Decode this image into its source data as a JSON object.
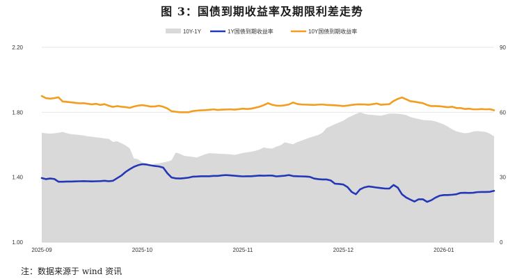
{
  "title": "图 3：国债到期收益率及期限利差走势",
  "note": "注：数据来源于 wind 资讯",
  "chart_data": {
    "type": "line+area",
    "x_tick_labels": [
      "2025-09",
      "2025-10",
      "2025-11",
      "2025-12",
      "2026-01"
    ],
    "x_ticks_index": [
      0,
      24,
      48,
      72,
      96
    ],
    "n_points": 109,
    "left_axis": {
      "ylim": [
        1.0,
        2.2
      ],
      "ticks": [
        "1.00",
        "1.40",
        "1.80",
        "2.20"
      ]
    },
    "right_axis": {
      "ylim": [
        0,
        90
      ],
      "ticks": [
        "0",
        "30",
        "60",
        "90"
      ]
    },
    "grid": true,
    "legend_position": "top-center",
    "series": [
      {
        "name": "10Y-1Y",
        "type": "area",
        "axis": "right",
        "color": "#d9d9d9",
        "values": [
          50.5,
          50.3,
          50.1,
          50.3,
          50.5,
          50.9,
          50.3,
          49.9,
          49.7,
          49.5,
          49.2,
          48.9,
          48.7,
          48.4,
          48.2,
          47.9,
          47.7,
          46.3,
          46.6,
          45.7,
          44.7,
          43.3,
          38.7,
          38.3,
          36.8,
          36.4,
          35.4,
          36.2,
          36.4,
          36.8,
          37.2,
          37.8,
          41.4,
          40.8,
          39.9,
          39.6,
          39.4,
          39.1,
          39.8,
          40.6,
          41.1,
          41.0,
          40.9,
          40.8,
          40.7,
          40.6,
          40.3,
          40.7,
          41.2,
          41.5,
          41.8,
          42.2,
          42.8,
          43.7,
          43.4,
          43.2,
          44.1,
          44.7,
          46.1,
          45.7,
          45.2,
          46.2,
          46.9,
          47.6,
          48.3,
          48.9,
          49.5,
          50.5,
          52.7,
          53.6,
          54.5,
          55.3,
          56.1,
          57.4,
          58.3,
          59.2,
          60.0,
          59.3,
          58.9,
          58.8,
          58.6,
          58.4,
          58.9,
          59.4,
          59.4,
          59.3,
          59.1,
          58.7,
          57.8,
          57.3,
          56.9,
          56.4,
          56.3,
          56.2,
          55.8,
          55.1,
          54.4,
          53.3,
          52.1,
          51.2,
          50.7,
          50.3,
          50.5,
          51.1,
          51.3,
          51.1,
          50.9,
          50.1,
          48.9
        ]
      },
      {
        "name": "1Y国债到期收益率",
        "type": "line",
        "axis": "left",
        "color": "#2437b5",
        "values": [
          1.395,
          1.388,
          1.392,
          1.389,
          1.372,
          1.372,
          1.373,
          1.373,
          1.374,
          1.375,
          1.376,
          1.375,
          1.374,
          1.375,
          1.376,
          1.378,
          1.375,
          1.378,
          1.394,
          1.41,
          1.432,
          1.449,
          1.464,
          1.474,
          1.48,
          1.478,
          1.473,
          1.469,
          1.466,
          1.459,
          1.424,
          1.398,
          1.393,
          1.392,
          1.394,
          1.397,
          1.403,
          1.404,
          1.406,
          1.406,
          1.406,
          1.408,
          1.408,
          1.411,
          1.413,
          1.411,
          1.409,
          1.407,
          1.405,
          1.406,
          1.406,
          1.408,
          1.41,
          1.409,
          1.41,
          1.41,
          1.405,
          1.407,
          1.409,
          1.413,
          1.407,
          1.406,
          1.405,
          1.404,
          1.402,
          1.392,
          1.388,
          1.386,
          1.386,
          1.38,
          1.36,
          1.358,
          1.355,
          1.339,
          1.309,
          1.295,
          1.325,
          1.337,
          1.343,
          1.34,
          1.336,
          1.333,
          1.33,
          1.33,
          1.352,
          1.336,
          1.295,
          1.275,
          1.262,
          1.25,
          1.264,
          1.264,
          1.248,
          1.258,
          1.274,
          1.286,
          1.29,
          1.29,
          1.292,
          1.295,
          1.303,
          1.304,
          1.303,
          1.304,
          1.308,
          1.309,
          1.309,
          1.31,
          1.316
        ]
      },
      {
        "name": "10Y国债到期收益率",
        "type": "line",
        "axis": "left",
        "color": "#f39c1e",
        "values": [
          1.9,
          1.887,
          1.884,
          1.887,
          1.892,
          1.866,
          1.864,
          1.861,
          1.858,
          1.855,
          1.856,
          1.852,
          1.849,
          1.852,
          1.845,
          1.85,
          1.84,
          1.833,
          1.838,
          1.834,
          1.832,
          1.827,
          1.835,
          1.841,
          1.844,
          1.84,
          1.835,
          1.836,
          1.84,
          1.834,
          1.823,
          1.806,
          1.803,
          1.8,
          1.8,
          1.8,
          1.807,
          1.81,
          1.812,
          1.813,
          1.815,
          1.818,
          1.814,
          1.816,
          1.817,
          1.818,
          1.816,
          1.819,
          1.822,
          1.82,
          1.822,
          1.828,
          1.834,
          1.844,
          1.856,
          1.846,
          1.841,
          1.84,
          1.843,
          1.848,
          1.86,
          1.851,
          1.848,
          1.847,
          1.846,
          1.845,
          1.847,
          1.848,
          1.845,
          1.844,
          1.843,
          1.841,
          1.838,
          1.841,
          1.845,
          1.848,
          1.849,
          1.848,
          1.846,
          1.85,
          1.854,
          1.846,
          1.848,
          1.85,
          1.869,
          1.882,
          1.891,
          1.88,
          1.868,
          1.865,
          1.86,
          1.856,
          1.845,
          1.838,
          1.838,
          1.837,
          1.834,
          1.831,
          1.834,
          1.826,
          1.826,
          1.82,
          1.822,
          1.818,
          1.818,
          1.82,
          1.818,
          1.819,
          1.812
        ]
      }
    ]
  }
}
